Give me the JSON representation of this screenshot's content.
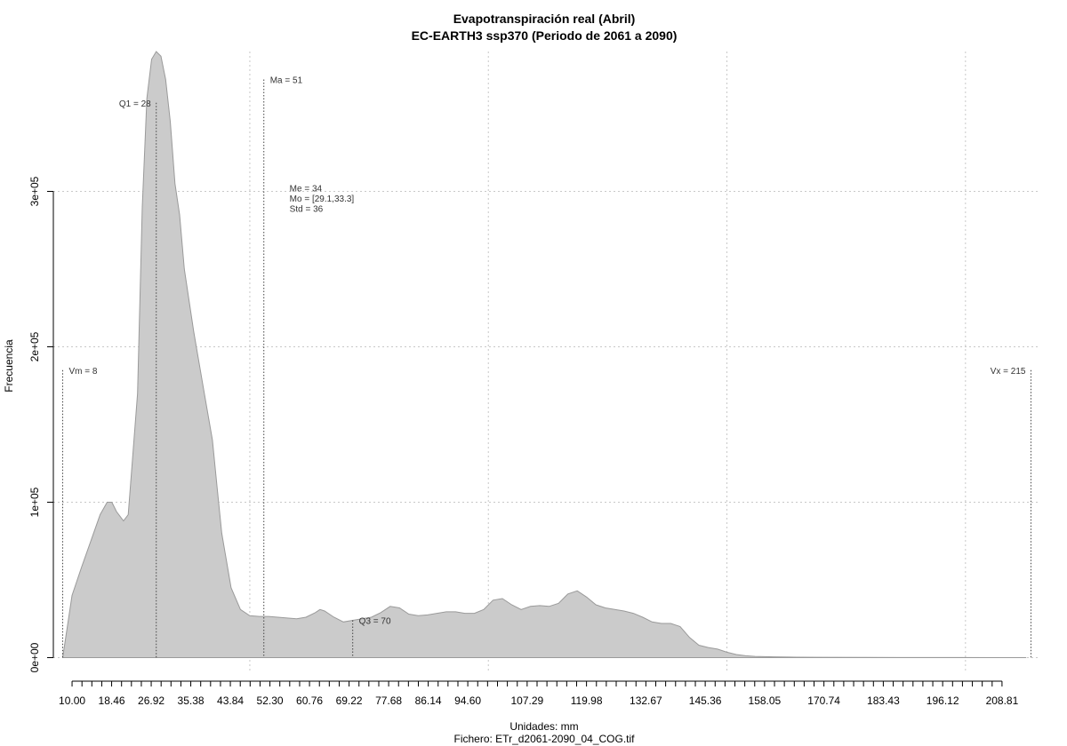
{
  "chart_data": {
    "type": "area",
    "title": "Evapotranspiración real (Abril)",
    "subtitle": "EC-EARTH3 ssp370 (Periodo de 2061 a 2090)",
    "xlabel": "Unidades: mm",
    "caption": "Fichero: ETr_d2061-2090_04_COG.tif",
    "ylabel": "Frecuencia",
    "xlim": [
      6,
      217
    ],
    "ylim": [
      -10000,
      390000
    ],
    "x_ticks": [
      10.0,
      12.12,
      14.23,
      16.35,
      18.46,
      20.58,
      22.69,
      24.81,
      26.92,
      29.04,
      31.15,
      33.27,
      35.38,
      37.5,
      39.61,
      41.73,
      43.84,
      45.96,
      48.07,
      50.19,
      52.3,
      54.42,
      56.53,
      58.65,
      60.76,
      62.88,
      64.99,
      67.11,
      69.22,
      71.34,
      73.45,
      75.57,
      77.68,
      79.8,
      81.91,
      84.03,
      86.14,
      88.26,
      90.37,
      92.49,
      94.6,
      96.72,
      98.83,
      100.95,
      103.06,
      105.18,
      107.29,
      109.41,
      111.52,
      113.64,
      115.75,
      117.87,
      119.98,
      122.1,
      124.21,
      126.33,
      128.44,
      130.56,
      132.67,
      134.79,
      136.9,
      139.02,
      141.13,
      143.25,
      145.36,
      147.48,
      149.59,
      151.71,
      153.82,
      155.94,
      158.05,
      160.17,
      162.28,
      164.4,
      166.51,
      168.63,
      170.74,
      172.86,
      174.97,
      177.09,
      179.2,
      181.32,
      183.43,
      185.55,
      187.66,
      189.78,
      191.89,
      194.01,
      196.12,
      198.24,
      200.35,
      202.47,
      204.58,
      206.7,
      208.81
    ],
    "x_tick_labels": [
      "10.00",
      "18.46",
      "26.92",
      "35.38",
      "43.84",
      "52.30",
      "60.76",
      "69.22",
      "77.68",
      "86.14",
      "94.60",
      "107.29",
      "119.98",
      "132.67",
      "145.36",
      "158.05",
      "170.74",
      "183.43",
      "196.12",
      "208.81"
    ],
    "y_ticks": [
      0,
      100000,
      200000,
      300000
    ],
    "y_tick_labels": [
      "0e+00",
      "1e+05",
      "2e+05",
      "3e+05"
    ],
    "x_grid": [
      48,
      99,
      150,
      201
    ],
    "grid": true,
    "fill_color": "#cbcbcb",
    "line_color": "#9a9a9a",
    "x": [
      8,
      10,
      12,
      14,
      16,
      17.5,
      18.5,
      19.5,
      21,
      22,
      24,
      25,
      26,
      27,
      28,
      29,
      30,
      31,
      32,
      33,
      34,
      36,
      38,
      40,
      41,
      42,
      44,
      46,
      48,
      50,
      52,
      54,
      56,
      58,
      60,
      62,
      63,
      64,
      66,
      68,
      70,
      72,
      74,
      76,
      78,
      80,
      82,
      84,
      86,
      88,
      90,
      92,
      94,
      96,
      98,
      100,
      102,
      104,
      106,
      108,
      110,
      112,
      114,
      116,
      118,
      120,
      122,
      124,
      126,
      128,
      130,
      132,
      134,
      136,
      138,
      140,
      142,
      144,
      146,
      148,
      150,
      152,
      154,
      156,
      160,
      165,
      170,
      180,
      190,
      200,
      210,
      214
    ],
    "values": [
      0,
      40000,
      58000,
      75000,
      92000,
      100000,
      100000,
      94000,
      88000,
      92000,
      170000,
      290000,
      360000,
      385000,
      390000,
      387000,
      372000,
      345000,
      305000,
      285000,
      250000,
      210000,
      175000,
      140000,
      110000,
      80000,
      45000,
      31000,
      27000,
      26500,
      26500,
      26000,
      25500,
      25000,
      26000,
      29000,
      31000,
      30000,
      26000,
      23000,
      24000,
      25000,
      26000,
      29000,
      33000,
      32000,
      28000,
      27000,
      27500,
      28500,
      29500,
      29500,
      28500,
      28500,
      31000,
      37000,
      38000,
      34000,
      31000,
      33000,
      33500,
      33000,
      35000,
      41000,
      43000,
      39000,
      34000,
      32000,
      31000,
      30000,
      28500,
      26000,
      23000,
      22000,
      22000,
      20000,
      13000,
      8000,
      6500,
      5500,
      3500,
      2000,
      1200,
      800,
      500,
      300,
      200,
      100,
      50,
      30,
      0,
      0
    ],
    "reference_lines": [
      {
        "label": "Vm = 8",
        "x": 8,
        "y": 185000,
        "label_anchor": "start"
      },
      {
        "label": "Q1 = 28",
        "x": 28,
        "y": 357000,
        "label_anchor": "end"
      },
      {
        "label": "Ma = 51",
        "x": 51,
        "y": 372000,
        "label_anchor": "start"
      },
      {
        "label": "Q3 = 70",
        "x": 70,
        "y": 24000,
        "label_anchor": "start"
      },
      {
        "label": "Vx = 215",
        "x": 215,
        "y": 185000,
        "label_anchor": "end"
      }
    ],
    "stats_box": {
      "x": 56.5,
      "y": 300000,
      "lines": [
        "Me = 34",
        "Mo = [29.1,33.3]",
        "Std = 36"
      ]
    }
  }
}
